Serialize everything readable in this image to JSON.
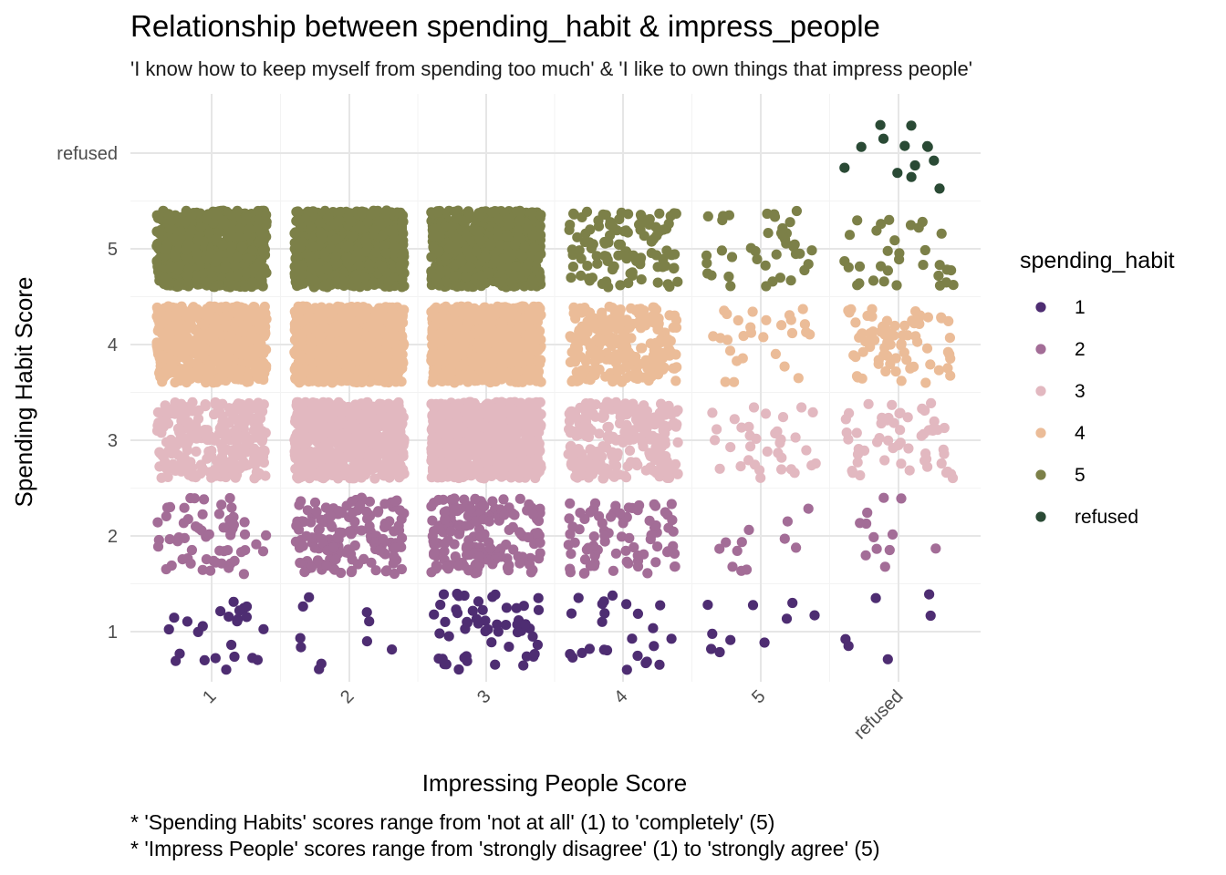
{
  "chart_data": {
    "type": "scatter",
    "jitter": true,
    "title": "Relationship between spending_habit & impress_people",
    "subtitle": "'I know how to keep myself from spending too much' & 'I like to own things that impress people'",
    "xlabel": "Impressing People Score",
    "ylabel": "Spending Habit Score",
    "x_categories": [
      "1",
      "2",
      "3",
      "4",
      "5",
      "refused"
    ],
    "y_categories": [
      "1",
      "2",
      "3",
      "4",
      "5",
      "refused"
    ],
    "grid": true,
    "legend": {
      "title": "spending_habit",
      "placement": "right",
      "entries": [
        {
          "label": "1",
          "color": "#4e2d72"
        },
        {
          "label": "2",
          "color": "#a36d97"
        },
        {
          "label": "3",
          "color": "#e2b8c0"
        },
        {
          "label": "4",
          "color": "#ebbc98"
        },
        {
          "label": "5",
          "color": "#7c8048"
        },
        {
          "label": "refused",
          "color": "#2a4a35"
        }
      ]
    },
    "counts": [
      {
        "x": "1",
        "series": [
          24,
          60,
          260,
          700,
          700,
          0
        ]
      },
      {
        "x": "2",
        "series": [
          10,
          150,
          650,
          900,
          700,
          0
        ]
      },
      {
        "x": "3",
        "series": [
          55,
          170,
          800,
          900,
          650,
          0
        ]
      },
      {
        "x": "4",
        "series": [
          25,
          80,
          250,
          240,
          110,
          0
        ]
      },
      {
        "x": "5",
        "series": [
          10,
          12,
          35,
          28,
          40,
          0
        ]
      },
      {
        "x": "refused",
        "series": [
          6,
          12,
          55,
          75,
          32,
          13
        ]
      }
    ],
    "captions": [
      "* 'Spending Habits' scores range from 'not at all' (1) to 'completely' (5)",
      "* 'Impress People' scores range from 'strongly disagree' (1) to 'strongly agree' (5)"
    ]
  }
}
